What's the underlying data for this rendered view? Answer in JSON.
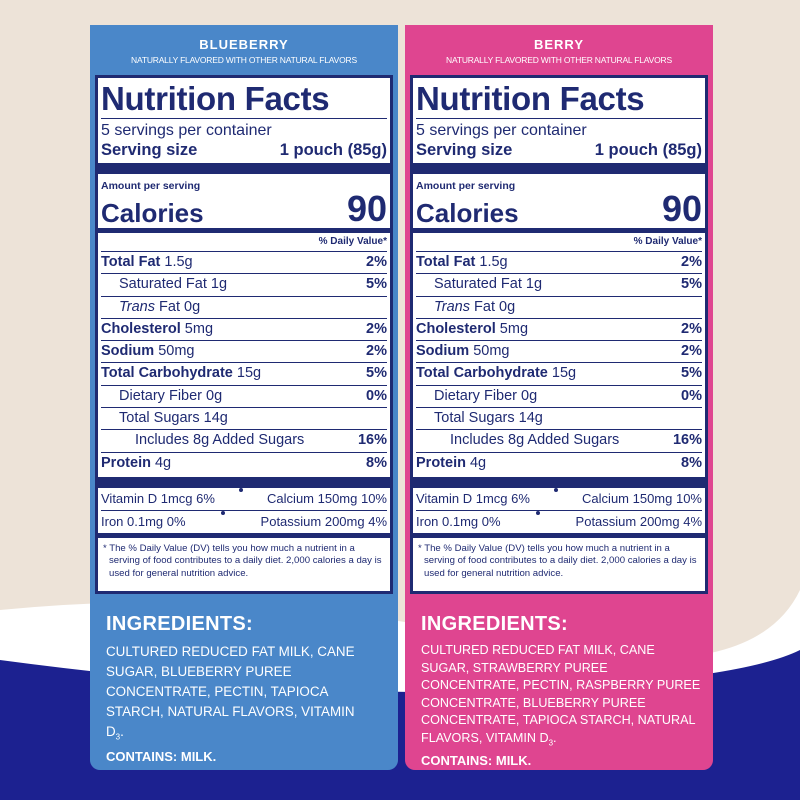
{
  "panels": [
    {
      "flavor": "BLUEBERRY",
      "subtitle": "NATURALLY FLAVORED WITH  OTHER NATURAL FLAVORS",
      "title": "Nutrition Facts",
      "servings": "5 servings per container",
      "serving_label": "Serving size",
      "serving_value": "1 pouch (85g)",
      "amount": "Amount per serving",
      "calories_label": "Calories",
      "calories_value": "90",
      "dv_header": "% Daily Value*",
      "rows": [
        {
          "name": "Total Fat",
          "amount": "1.5g",
          "dv": "2%"
        },
        {
          "name": "Saturated Fat 1g",
          "dv": "5%"
        },
        {
          "italic": "Trans",
          "name": "Fat 0g"
        },
        {
          "name": "Cholesterol",
          "amount": "5mg",
          "dv": "2%"
        },
        {
          "name": "Sodium",
          "amount": "50mg",
          "dv": "2%"
        },
        {
          "name": "Total Carbohydrate",
          "amount": "15g",
          "dv": "5%"
        },
        {
          "name": "Dietary Fiber 0g",
          "dv": "0%"
        },
        {
          "name": "Total Sugars 14g"
        },
        {
          "name": "Includes 8g Added Sugars",
          "dv": "16%"
        },
        {
          "name": "Protein",
          "amount": "4g",
          "dv": "8%"
        }
      ],
      "vitamins": [
        [
          "Vitamin D 1mcg 6%",
          "Calcium 150mg 10%"
        ],
        [
          "Iron 0.1mg 0%",
          "Potassium 200mg 4%"
        ]
      ],
      "footnote": "* The % Daily Value (DV) tells you how much a nutrient in a serving of food contributes to a daily diet. 2,000 calories a day is used for general nutrition advice.",
      "ingredients_title": "INGREDIENTS:",
      "ingredients": "CULTURED REDUCED FAT MILK, CANE SUGAR, BLUEBERRY PUREE CONCENTRATE, PECTIN, TAPIOCA STARCH, NATURAL FLAVORS, VITAMIN D",
      "ingredients_sub": "3",
      "ingredients_end": ".",
      "contains": "CONTAINS: MILK."
    },
    {
      "flavor": "BERRY",
      "subtitle": "NATURALLY FLAVORED WITH  OTHER NATURAL FLAVORS",
      "title": "Nutrition Facts",
      "servings": "5 servings per container",
      "serving_label": "Serving size",
      "serving_value": "1 pouch (85g)",
      "amount": "Amount per serving",
      "calories_label": "Calories",
      "calories_value": "90",
      "dv_header": "% Daily Value*",
      "rows": [
        {
          "name": "Total Fat",
          "amount": "1.5g",
          "dv": "2%"
        },
        {
          "name": "Saturated Fat 1g",
          "dv": "5%"
        },
        {
          "italic": "Trans",
          "name": "Fat 0g"
        },
        {
          "name": "Cholesterol",
          "amount": "5mg",
          "dv": "2%"
        },
        {
          "name": "Sodium",
          "amount": "50mg",
          "dv": "2%"
        },
        {
          "name": "Total Carbohydrate",
          "amount": "15g",
          "dv": "5%"
        },
        {
          "name": "Dietary Fiber 0g",
          "dv": "0%"
        },
        {
          "name": "Total Sugars 14g"
        },
        {
          "name": "Includes 8g Added Sugars",
          "dv": "16%"
        },
        {
          "name": "Protein",
          "amount": "4g",
          "dv": "8%"
        }
      ],
      "vitamins": [
        [
          "Vitamin D 1mcg 6%",
          "Calcium 150mg 10%"
        ],
        [
          "Iron 0.1mg 0%",
          "Potassium 200mg 4%"
        ]
      ],
      "footnote": "* The % Daily Value (DV) tells you how much a nutrient in a serving of food contributes to a daily diet. 2,000 calories a day is used for general nutrition advice.",
      "ingredients_title": "INGREDIENTS:",
      "ingredients": "CULTURED REDUCED FAT MILK, CANE SUGAR, STRAWBERRY PUREE CONCENTRATE, PECTIN, RASPBERRY PUREE CONCENTRATE, BLUEBERRY PUREE CONCENTRATE, TAPIOCA STARCH, NATURAL FLAVORS, VITAMIN D",
      "ingredients_sub": "3",
      "ingredients_end": ".",
      "contains": "CONTAINS: MILK."
    }
  ]
}
